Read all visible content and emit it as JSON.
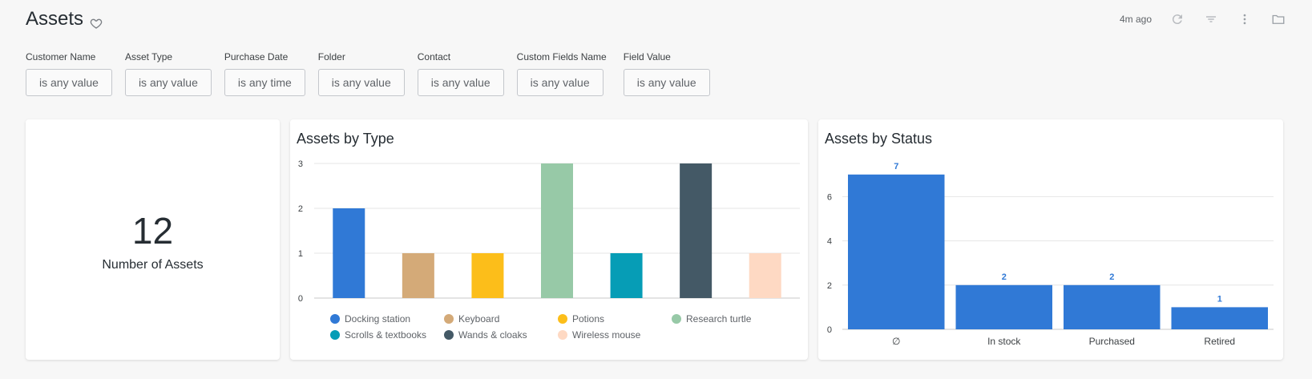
{
  "header": {
    "title": "Assets",
    "updated": "4m ago"
  },
  "filters": [
    {
      "label": "Customer Name",
      "value": "is any value"
    },
    {
      "label": "Asset Type",
      "value": "is any value"
    },
    {
      "label": "Purchase Date",
      "value": "is any time"
    },
    {
      "label": "Folder",
      "value": "is any value"
    },
    {
      "label": "Contact",
      "value": "is any value"
    },
    {
      "label": "Custom Fields Name",
      "value": "is any value"
    },
    {
      "label": "Field Value",
      "value": "is any value"
    }
  ],
  "kpi": {
    "value": "12",
    "label": "Number of Assets"
  },
  "chart_data": [
    {
      "type": "bar",
      "title": "Assets by Type",
      "categories": [
        "Docking station",
        "Keyboard",
        "Potions",
        "Research turtle",
        "Scrolls & textbooks",
        "Wands & cloaks",
        "Wireless mouse"
      ],
      "values": [
        2,
        1,
        1,
        3,
        1,
        3,
        1
      ],
      "colors": [
        "#3079d6",
        "#d4aa78",
        "#fcbe1a",
        "#97c9a7",
        "#069db6",
        "#445966",
        "#fed9c3"
      ],
      "ylim": [
        0,
        3
      ],
      "yticks": [
        0,
        1,
        2,
        3
      ],
      "legend": "bottom",
      "grid": true
    },
    {
      "type": "bar",
      "title": "Assets by Status",
      "categories": [
        "∅",
        "In stock",
        "Purchased",
        "Retired"
      ],
      "values": [
        7,
        2,
        2,
        1
      ],
      "color": "#3079d6",
      "ylim": [
        0,
        7.5
      ],
      "yticks": [
        0,
        2,
        4,
        6
      ],
      "data_labels": true,
      "grid": true
    }
  ]
}
